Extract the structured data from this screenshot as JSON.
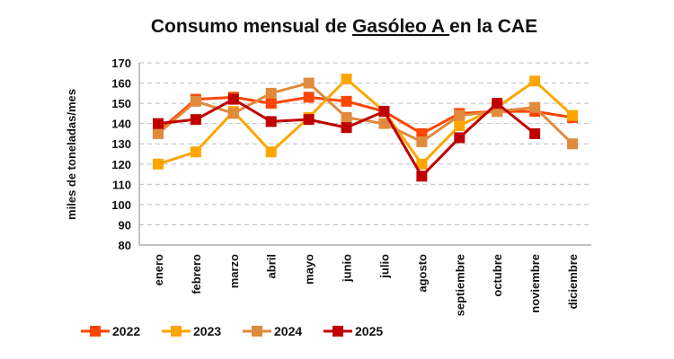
{
  "chart_data": {
    "type": "line",
    "title_parts": [
      "Consumo mensual de ",
      "Gasóleo A ",
      "en la CAE"
    ],
    "ylabel": "miles de toneladas/mes",
    "xlabel": "",
    "ylim": [
      80,
      170
    ],
    "ytick_step": 10,
    "grid": "horizontal-dashed",
    "legend_position": "bottom",
    "categories": [
      "enero",
      "febrero",
      "marzo",
      "abril",
      "mayo",
      "junio",
      "julio",
      "agosto",
      "septiembre",
      "octubre",
      "noviembre",
      "diciembre"
    ],
    "series": [
      {
        "name": "2022",
        "color": "#FF4500",
        "values": [
          136,
          152,
          153,
          150,
          153,
          151,
          146,
          135,
          145,
          146,
          146,
          143
        ]
      },
      {
        "name": "2023",
        "color": "#FFA500",
        "values": [
          120,
          126,
          146,
          126,
          143,
          162,
          146,
          120,
          139,
          148,
          161,
          144
        ]
      },
      {
        "name": "2024",
        "color": "#E08A3C",
        "values": [
          135,
          151,
          145,
          155,
          160,
          143,
          140,
          131,
          144,
          146,
          148,
          130
        ]
      },
      {
        "name": "2025",
        "color": "#C00000",
        "values": [
          140,
          142,
          152,
          141,
          142,
          138,
          146,
          114,
          133,
          150,
          135,
          null
        ]
      }
    ]
  }
}
